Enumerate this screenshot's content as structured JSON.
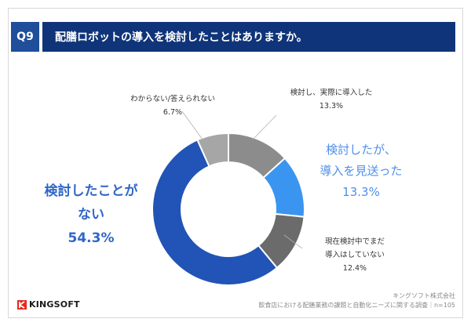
{
  "header": {
    "q_label": "Q9",
    "question": "配膳ロボットの導入を検討したことはありますか。"
  },
  "chart_data": {
    "type": "pie",
    "title": "配膳ロボットの導入を検討したことはありますか。",
    "categories": [
      "検討し、実際に導入した",
      "検討したが、導入を見送った",
      "現在検討中でまだ導入はしていない",
      "検討したことがない",
      "わからない/答えられない"
    ],
    "values": [
      13.3,
      13.3,
      12.4,
      54.3,
      6.7
    ],
    "colors": [
      "#8c8c8c",
      "#3a95f0",
      "#6b6b6b",
      "#2154b6",
      "#a6a6a6"
    ],
    "sample_size": "n=105"
  },
  "labels": {
    "implemented_l1": "検討し、実際に導入した",
    "implemented_pct": "13.3%",
    "declined_l1": "検討したが、",
    "declined_l2": "導入を見送った",
    "declined_pct": "13.3%",
    "considering_l1": "現在検討中でまだ",
    "considering_l2": "導入はしていない",
    "considering_pct": "12.4%",
    "never_l1": "検討したことが",
    "never_l2": "ない",
    "never_pct": "54.3%",
    "unknown_l1": "わからない/答えられない",
    "unknown_pct": "6.7%"
  },
  "footer": {
    "company": "キングソフト株式会社",
    "survey": "飲食店における配膳業務の課題と自動化ニーズに関する調査｜n=105"
  },
  "logo": {
    "text": "KINGSOFT"
  }
}
